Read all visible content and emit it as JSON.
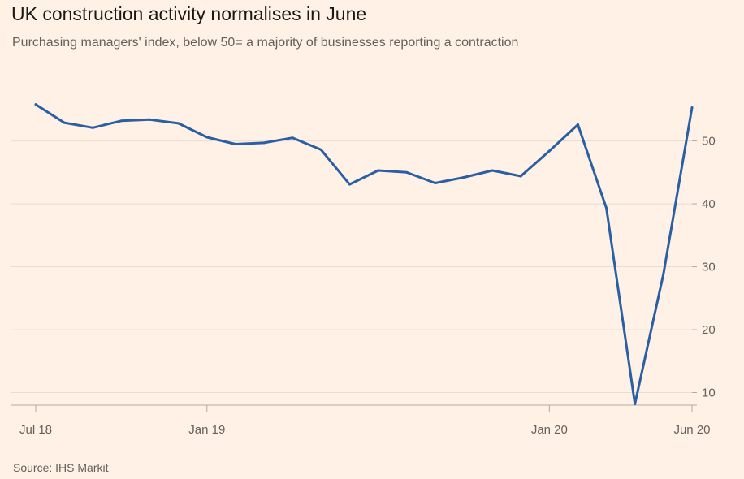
{
  "header": {
    "title": "UK construction activity normalises in June",
    "subtitle": "Purchasing managers' index, below 50= a majority of businesses reporting a contraction"
  },
  "footer": {
    "source": "Source: IHS Markit"
  },
  "colors": {
    "background": "#fff1e5",
    "line": "#2b5fa4",
    "grid": "#e9ddd2",
    "axis": "#b3aaa2",
    "text": "#66605c"
  },
  "chart_data": {
    "type": "line",
    "title": "UK construction activity normalises in June",
    "subtitle": "Purchasing managers' index, below 50= a majority of businesses reporting a contraction",
    "xlabel": "",
    "ylabel": "",
    "x": [
      "2018-07",
      "2018-08",
      "2018-09",
      "2018-10",
      "2018-11",
      "2018-12",
      "2019-01",
      "2019-02",
      "2019-03",
      "2019-04",
      "2019-05",
      "2019-06",
      "2019-07",
      "2019-08",
      "2019-09",
      "2019-10",
      "2019-11",
      "2019-12",
      "2020-01",
      "2020-02",
      "2020-03",
      "2020-04",
      "2020-05",
      "2020-06"
    ],
    "x_tick_labels": [
      {
        "x": "2018-07",
        "label": "Jul 18"
      },
      {
        "x": "2019-01",
        "label": "Jan 19"
      },
      {
        "x": "2020-01",
        "label": "Jan 20"
      },
      {
        "x": "2020-06",
        "label": "Jun 20"
      }
    ],
    "y_ticks": [
      10,
      20,
      30,
      40,
      50
    ],
    "ylim": [
      8,
      59.5
    ],
    "y_axis_side": "right",
    "grid": true,
    "series": [
      {
        "values": [
          55.8,
          52.9,
          52.1,
          53.2,
          53.4,
          52.8,
          50.6,
          49.5,
          49.7,
          50.5,
          48.6,
          43.1,
          45.3,
          45.0,
          43.3,
          44.2,
          45.3,
          44.4,
          48.4,
          52.6,
          39.3,
          8.2,
          28.9,
          55.3
        ]
      }
    ]
  }
}
